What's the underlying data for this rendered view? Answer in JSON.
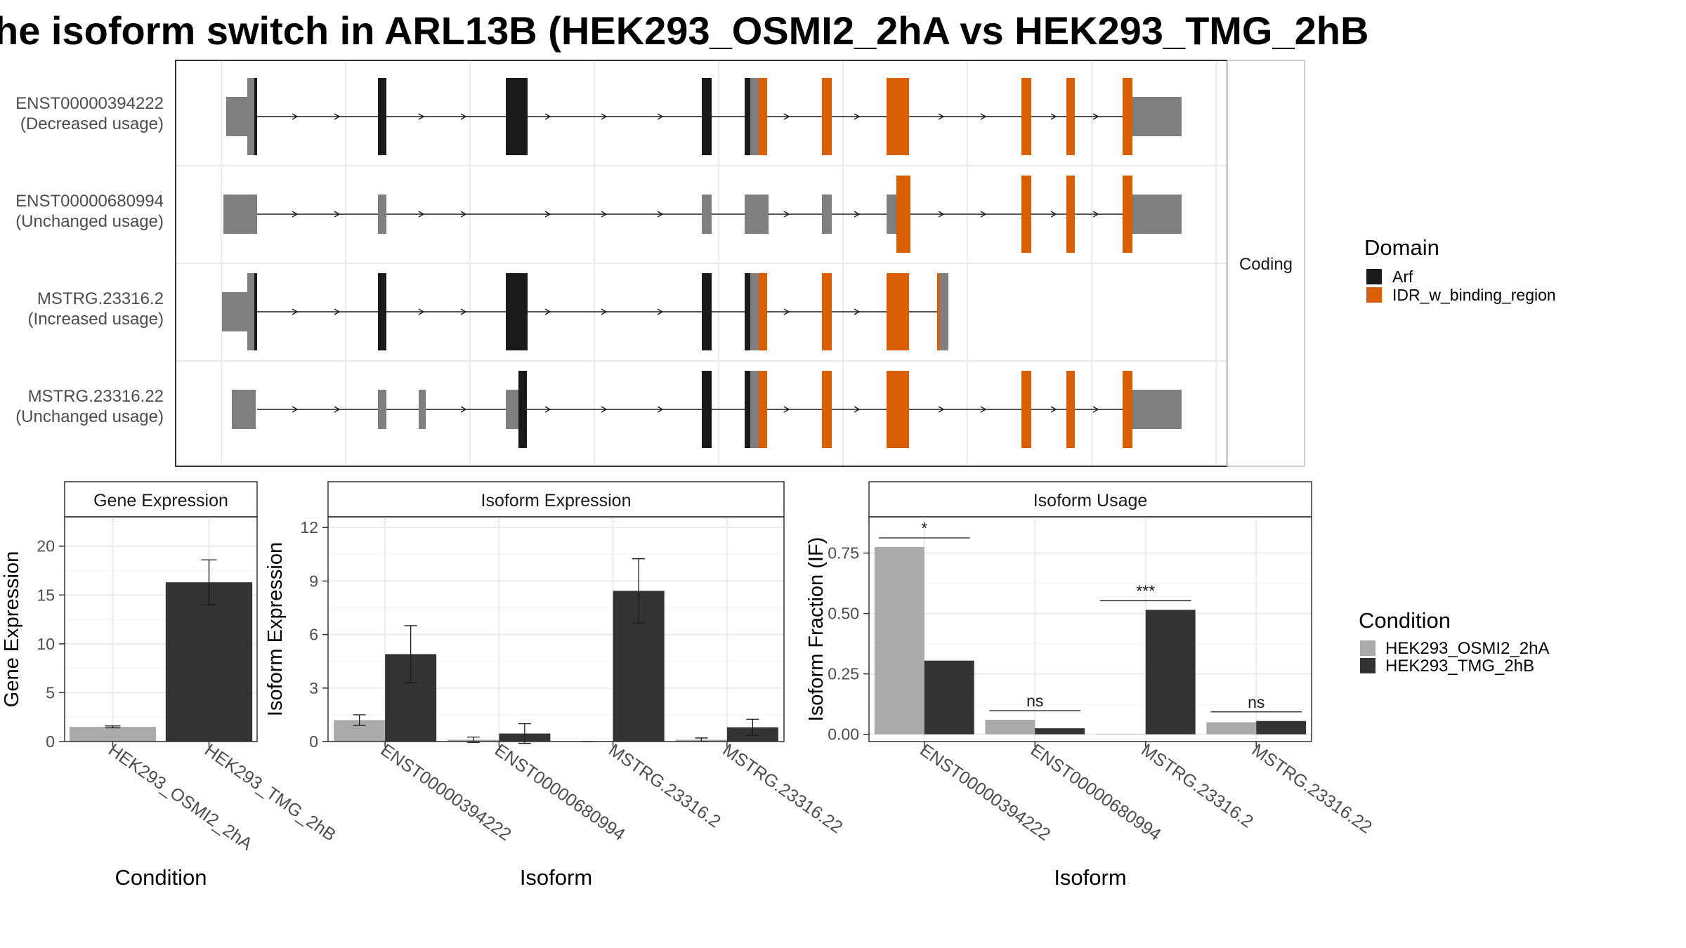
{
  "title": "he isoform switch in ARL13B (HEK293_OSMI2_2hA vs HEK293_TMG_2hB",
  "colors": {
    "arf": "#1a1a1a",
    "idr": "#d95f02",
    "utr": "#7f7f7f",
    "cond1": "#aaaaaa",
    "cond2": "#333333"
  },
  "structure": {
    "facet_label": "Coding",
    "transcripts": [
      {
        "id": "ENST00000394222",
        "usage": "(Decreased usage)"
      },
      {
        "id": "ENST00000680994",
        "usage": "(Unchanged usage)"
      },
      {
        "id": "MSTRG.23316.2",
        "usage": "(Increased usage)"
      },
      {
        "id": "MSTRG.23316.22",
        "usage": "(Unchanged usage)"
      }
    ],
    "legend": {
      "title": "Domain",
      "items": [
        {
          "label": "Arf",
          "color": "#1a1a1a"
        },
        {
          "label": "IDR_w_binding_region",
          "color": "#d95f02"
        }
      ]
    }
  },
  "condition_legend": {
    "title": "Condition",
    "items": [
      {
        "label": "HEK293_OSMI2_2hA",
        "color": "#aaaaaa"
      },
      {
        "label": "HEK293_TMG_2hB",
        "color": "#333333"
      }
    ]
  },
  "chart_data": [
    {
      "type": "bar",
      "title": "Gene Expression",
      "xlabel": "Condition",
      "ylabel": "Gene Expression",
      "categories": [
        "HEK293_OSMI2_2hA",
        "HEK293_TMG_2hB"
      ],
      "values": [
        1.5,
        16.3
      ],
      "errors": [
        0.1,
        2.3
      ],
      "ylim": [
        0,
        23
      ],
      "yticks": [
        0,
        5,
        10,
        15,
        20
      ]
    },
    {
      "type": "bar",
      "title": "Isoform Expression",
      "xlabel": "Isoform",
      "ylabel": "Isoform Expression",
      "categories": [
        "ENST00000394222",
        "ENST00000680994",
        "MSTRG.23316.2",
        "MSTRG.23316.22"
      ],
      "series": [
        {
          "name": "HEK293_OSMI2_2hA",
          "values": [
            1.2,
            0.1,
            0.0,
            0.1
          ],
          "errors": [
            0.3,
            0.15,
            0.0,
            0.1
          ]
        },
        {
          "name": "HEK293_TMG_2hB",
          "values": [
            4.9,
            0.45,
            8.45,
            0.8
          ],
          "errors": [
            1.6,
            0.55,
            1.8,
            0.45
          ]
        }
      ],
      "ylim": [
        0,
        12.6
      ],
      "yticks": [
        0,
        3,
        6,
        9,
        12
      ]
    },
    {
      "type": "bar",
      "title": "Isoform Usage",
      "xlabel": "Isoform",
      "ylabel": "Isoform Fraction (IF)",
      "categories": [
        "ENST00000394222",
        "ENST00000680994",
        "MSTRG.23316.2",
        "MSTRG.23316.22"
      ],
      "series": [
        {
          "name": "HEK293_OSMI2_2hA",
          "values": [
            0.775,
            0.06,
            0.0,
            0.05
          ]
        },
        {
          "name": "HEK293_TMG_2hB",
          "values": [
            0.305,
            0.025,
            0.515,
            0.055
          ]
        }
      ],
      "significance": [
        "*",
        "ns",
        "***",
        "ns"
      ],
      "ylim": [
        -0.03,
        0.9
      ],
      "yticks": [
        "0.00",
        "0.25",
        "0.50",
        "0.75"
      ]
    }
  ]
}
